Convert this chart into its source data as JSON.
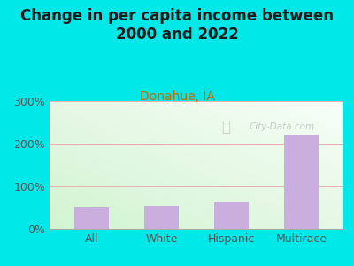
{
  "title": "Change in per capita income between\n2000 and 2022",
  "subtitle": "Donahue, IA",
  "categories": [
    "All",
    "White",
    "Hispanic",
    "Multirace"
  ],
  "values": [
    50,
    55,
    63,
    220
  ],
  "bar_color": "#c9aede",
  "background_color": "#00e8e8",
  "plot_bg_color_topleft": "#e8f5e8",
  "plot_bg_color_bottomright": "#f8fff8",
  "title_color": "#1a1a1a",
  "subtitle_color": "#cc6600",
  "tick_color": "#555555",
  "grid_color": "#e8b0b0",
  "ylim": [
    0,
    300
  ],
  "yticks": [
    0,
    100,
    200,
    300
  ],
  "ytick_labels": [
    "0%",
    "100%",
    "200%",
    "300%"
  ],
  "watermark": "City-Data.com",
  "title_fontsize": 12,
  "subtitle_fontsize": 10,
  "tick_fontsize": 9
}
